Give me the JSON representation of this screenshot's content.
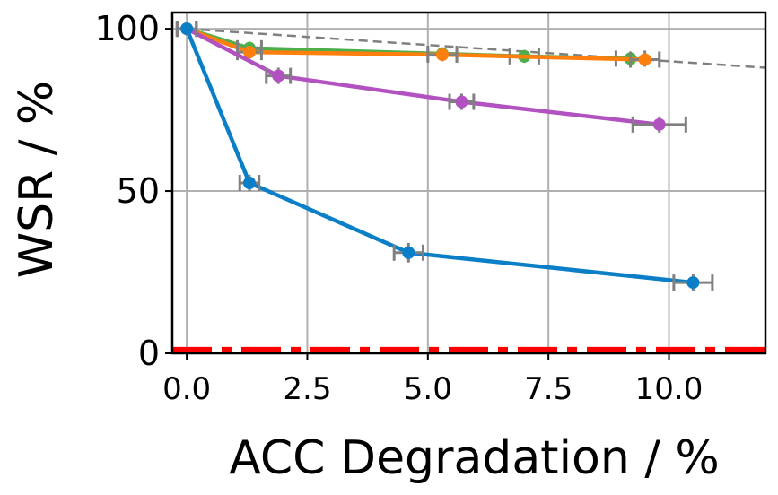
{
  "chart_data": {
    "type": "line",
    "title": "",
    "xlabel": "ACC Degradation / %",
    "ylabel": "WSR / %",
    "xlim": [
      -0.3,
      12.0
    ],
    "ylim": [
      0,
      105
    ],
    "xticks": [
      0.0,
      2.5,
      5.0,
      7.5,
      10.0
    ],
    "xtick_labels": [
      "0.0",
      "2.5",
      "5.0",
      "7.5",
      "10.0"
    ],
    "yticks": [
      0,
      50,
      100
    ],
    "ytick_labels": [
      "0",
      "50",
      "100"
    ],
    "grid": true,
    "reference_lines": [
      {
        "name": "diagonal-reference",
        "style": "dashed",
        "color": "#808080",
        "x": [
          0.0,
          12.0
        ],
        "y": [
          100.0,
          88.0
        ]
      },
      {
        "name": "baseline-zero",
        "style": "dashdot",
        "color": "#ff0000",
        "x": [
          -0.3,
          12.0
        ],
        "y": [
          1.0,
          1.0
        ]
      }
    ],
    "series": [
      {
        "name": "green-series",
        "color": "#4daf4a",
        "x": [
          0.0,
          1.3,
          5.3,
          7.0,
          9.2
        ],
        "y": [
          100.0,
          94.0,
          92.3,
          91.5,
          90.8
        ],
        "xerr": [
          0.2,
          0.25,
          0.3,
          0.3,
          0.3
        ],
        "yerr": [
          2.0,
          2.0,
          2.0,
          2.0,
          2.0
        ]
      },
      {
        "name": "orange-series",
        "color": "#ff7f0e",
        "x": [
          0.0,
          1.3,
          5.3,
          9.5
        ],
        "y": [
          100.0,
          92.8,
          92.0,
          90.5
        ],
        "xerr": [
          0.2,
          0.25,
          0.3,
          0.3
        ],
        "yerr": [
          2.0,
          2.0,
          2.0,
          2.0
        ]
      },
      {
        "name": "purple-series",
        "color": "#b152c0",
        "x": [
          0.0,
          1.9,
          5.7,
          9.8
        ],
        "y": [
          100.0,
          85.5,
          77.5,
          70.5
        ],
        "xerr": [
          0.2,
          0.25,
          0.25,
          0.55
        ],
        "yerr": [
          2.0,
          2.5,
          2.5,
          2.5
        ]
      },
      {
        "name": "blue-series",
        "color": "#0a7fc7",
        "x": [
          0.0,
          1.3,
          4.6,
          10.5
        ],
        "y": [
          100.0,
          52.5,
          31.0,
          21.8
        ],
        "xerr": [
          0.2,
          0.2,
          0.3,
          0.4
        ],
        "yerr": [
          2.0,
          2.5,
          3.0,
          2.5
        ]
      }
    ]
  }
}
